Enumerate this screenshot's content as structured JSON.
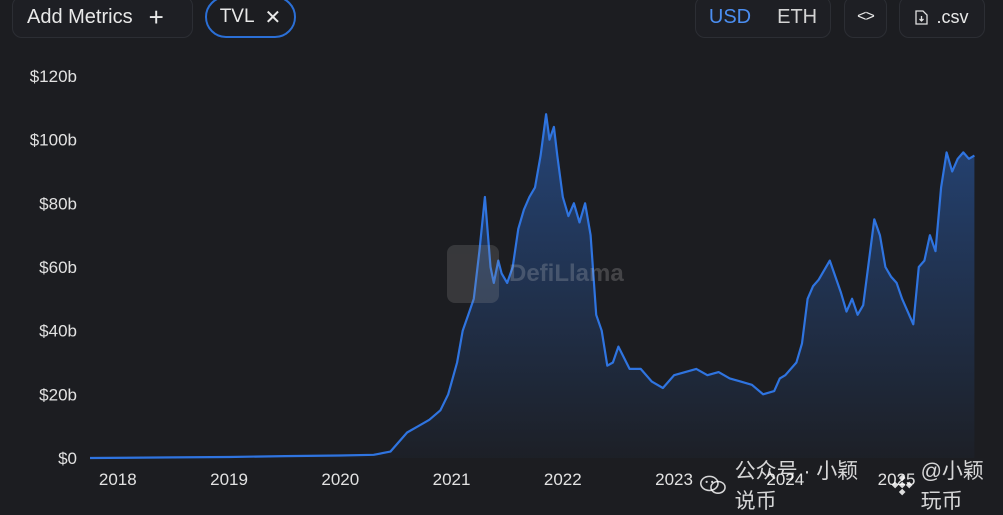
{
  "toolbar": {
    "add_metrics_label": "Add Metrics",
    "add_icon": "plus-icon",
    "metric_chip_label": "TVL",
    "remove_icon": "close-icon",
    "currency_options": [
      "USD",
      "ETH"
    ],
    "currency_selected": "USD",
    "embed_icon": "code-icon",
    "embed_label": "<>",
    "csv_label": ".csv",
    "csv_icon": "download-file-icon"
  },
  "watermark": {
    "text": "DefiLlama",
    "icon": "llama-logo"
  },
  "social": {
    "wechat_icon": "wechat-icon",
    "account_text": "公众号 · 小颖说币",
    "binance_icon": "binance-diamond-icon",
    "handle_text": "@小颖玩币"
  },
  "colors": {
    "line": "#2f74e0",
    "accent": "#4b8ef1",
    "background": "#1c1d21"
  },
  "chart_data": {
    "type": "area",
    "title": "",
    "xlabel": "",
    "ylabel": "",
    "y_unit": "$ billions",
    "ylim": [
      0,
      120
    ],
    "yticks": [
      0,
      20,
      40,
      60,
      80,
      100,
      120
    ],
    "ytick_labels": [
      "$0",
      "$20b",
      "$40b",
      "$60b",
      "$80b",
      "$100b",
      "$120b"
    ],
    "xlim": [
      2017.75,
      2025.75
    ],
    "xticks": [
      2018,
      2019,
      2020,
      2021,
      2022,
      2023,
      2024,
      2025
    ],
    "xtick_labels": [
      "2018",
      "2019",
      "2020",
      "2021",
      "2022",
      "2023",
      "2024",
      "2025"
    ],
    "grid": false,
    "series": [
      {
        "x": [
          2017.75,
          2018.5,
          2019.0,
          2019.5,
          2020.0,
          2020.3,
          2020.45,
          2020.6,
          2020.7,
          2020.8,
          2020.9,
          2020.97,
          2021.05,
          2021.1,
          2021.15,
          2021.2,
          2021.25,
          2021.3,
          2021.35,
          2021.38,
          2021.42,
          2021.45,
          2021.5,
          2021.55,
          2021.6,
          2021.65,
          2021.7,
          2021.75,
          2021.8,
          2021.85,
          2021.88,
          2021.92,
          2021.95,
          2022.0,
          2022.05,
          2022.1,
          2022.15,
          2022.2,
          2022.25,
          2022.3,
          2022.35,
          2022.4,
          2022.45,
          2022.5,
          2022.6,
          2022.7,
          2022.8,
          2022.9,
          2023.0,
          2023.1,
          2023.2,
          2023.3,
          2023.4,
          2023.5,
          2023.6,
          2023.7,
          2023.8,
          2023.9,
          2023.95,
          2024.0,
          2024.1,
          2024.15,
          2024.2,
          2024.25,
          2024.3,
          2024.4,
          2024.5,
          2024.55,
          2024.6,
          2024.65,
          2024.7,
          2024.8,
          2024.85,
          2024.9,
          2024.95,
          2025.0,
          2025.05,
          2025.1,
          2025.15,
          2025.2,
          2025.25,
          2025.3,
          2025.35,
          2025.4,
          2025.45,
          2025.5,
          2025.55,
          2025.6,
          2025.65,
          2025.7
        ],
        "y": [
          0.0,
          0.2,
          0.3,
          0.6,
          0.8,
          1.0,
          2.0,
          8.0,
          10.0,
          12.0,
          15.0,
          20.0,
          30.0,
          40.0,
          45.0,
          50.0,
          65.0,
          82.0,
          60.0,
          55.0,
          62.0,
          58.0,
          55.0,
          60.0,
          72.0,
          78.0,
          82.0,
          85.0,
          95.0,
          108.0,
          100.0,
          104.0,
          95.0,
          82.0,
          76.0,
          80.0,
          74.0,
          80.0,
          70.0,
          45.0,
          40.0,
          29.0,
          30.0,
          35.0,
          28.0,
          28.0,
          24.0,
          22.0,
          26.0,
          27.0,
          28.0,
          26.0,
          27.0,
          25.0,
          24.0,
          23.0,
          20.0,
          21.0,
          25.0,
          26.0,
          30.0,
          36.0,
          50.0,
          54.0,
          56.0,
          62.0,
          52.0,
          46.0,
          50.0,
          45.0,
          48.0,
          75.0,
          70.0,
          60.0,
          57.0,
          55.0,
          50.0,
          46.0,
          42.0,
          60.0,
          62.0,
          70.0,
          65.0,
          85.0,
          96.0,
          90.0,
          94.0,
          96.0,
          94.0,
          95.0
        ]
      }
    ]
  }
}
